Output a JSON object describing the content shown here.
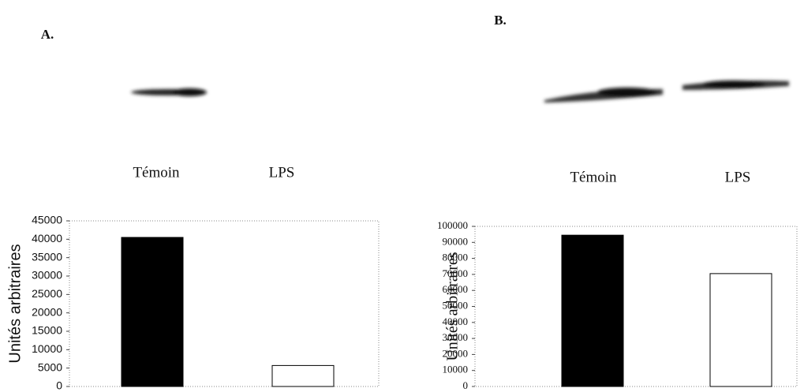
{
  "chart_data": [
    {
      "type": "bar",
      "panel_label": "A.",
      "y_label": "Unités arbitraires",
      "categories": [
        "Témoin",
        "LPS"
      ],
      "values": [
        40500,
        5700
      ],
      "colors": [
        "#000000",
        "#ffffff"
      ],
      "ylim": [
        0,
        45000
      ],
      "yticks": [
        0,
        5000,
        10000,
        15000,
        20000,
        25000,
        30000,
        35000,
        40000,
        45000
      ]
    },
    {
      "type": "bar",
      "panel_label": "B.",
      "y_label": "Unités arbitraires",
      "categories": [
        "Témoin",
        "LPS"
      ],
      "values": [
        94500,
        70500
      ],
      "colors": [
        "#000000",
        "#ffffff"
      ],
      "ylim": [
        0,
        100000
      ],
      "yticks": [
        0,
        10000,
        20000,
        30000,
        40000,
        50000,
        60000,
        70000,
        80000,
        90000,
        100000
      ]
    }
  ]
}
